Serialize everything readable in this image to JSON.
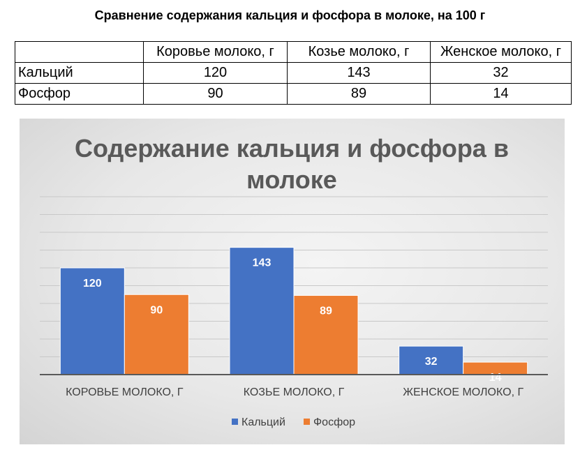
{
  "page": {
    "title": "Сравнение содержания кальция и фосфора в молоке, на 100 г"
  },
  "table": {
    "headers": [
      "",
      "Коровье молоко, г",
      "Козье молоко, г",
      "Женское молоко, г"
    ],
    "rows": [
      {
        "label": "Кальций",
        "values": [
          "120",
          "143",
          "32"
        ]
      },
      {
        "label": "Фосфор",
        "values": [
          "90",
          "89",
          "14"
        ]
      }
    ]
  },
  "chart_data": {
    "type": "bar",
    "title_lines": [
      "Содержание кальция и фосфора в",
      "молоке"
    ],
    "categories": [
      "КОРОВЬЕ МОЛОКО, Г",
      "КОЗЬЕ МОЛОКО, Г",
      "ЖЕНСКОЕ МОЛОКО, Г"
    ],
    "series": [
      {
        "name": "Кальций",
        "values": [
          120,
          143,
          32
        ],
        "color": "#4472c4"
      },
      {
        "name": "Фосфор",
        "values": [
          90,
          89,
          14
        ],
        "color": "#ed7d31"
      }
    ],
    "ylim": [
      0,
      200
    ],
    "gridlines": true,
    "data_labels": true,
    "legend": "bottom"
  }
}
